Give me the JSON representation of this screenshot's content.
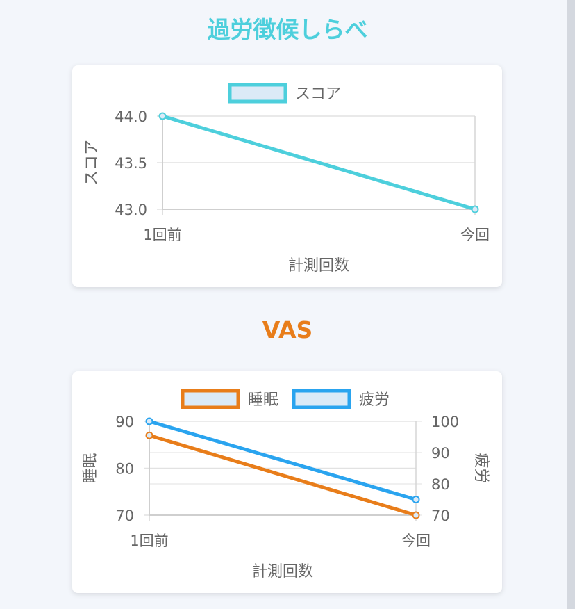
{
  "sections": [
    {
      "title": "過労徴候しらべ",
      "color": "#4dcfdc"
    },
    {
      "title": "VAS",
      "color": "#e87d1a"
    }
  ],
  "chart_data": [
    {
      "type": "line",
      "categories": [
        "1回前",
        "今回"
      ],
      "series": [
        {
          "name": "スコア",
          "values": [
            44.0,
            43.0
          ],
          "color": "#4dcfdc",
          "axis": "y"
        }
      ],
      "xlabel": "計測回数",
      "ylabel": "スコア",
      "ylim": [
        43.0,
        44.0
      ],
      "yticks": [
        "43.0",
        "43.5",
        "44.0"
      ],
      "legend": "top",
      "grid": true
    },
    {
      "type": "line",
      "categories": [
        "1回前",
        "今回"
      ],
      "series": [
        {
          "name": "睡眠",
          "values": [
            87,
            70
          ],
          "color": "#e87d1a",
          "axis": "y"
        },
        {
          "name": "疲労",
          "values": [
            100,
            75
          ],
          "color": "#2aa4ef",
          "axis": "y2"
        }
      ],
      "xlabel": "計測回数",
      "ylabel": "睡眠",
      "y2label": "疲労",
      "ylim": [
        70,
        90
      ],
      "y2lim": [
        70,
        100
      ],
      "yticks": [
        "70",
        "80",
        "90"
      ],
      "y2ticks": [
        "70",
        "80",
        "90",
        "100"
      ],
      "legend": "top",
      "grid": true
    }
  ]
}
